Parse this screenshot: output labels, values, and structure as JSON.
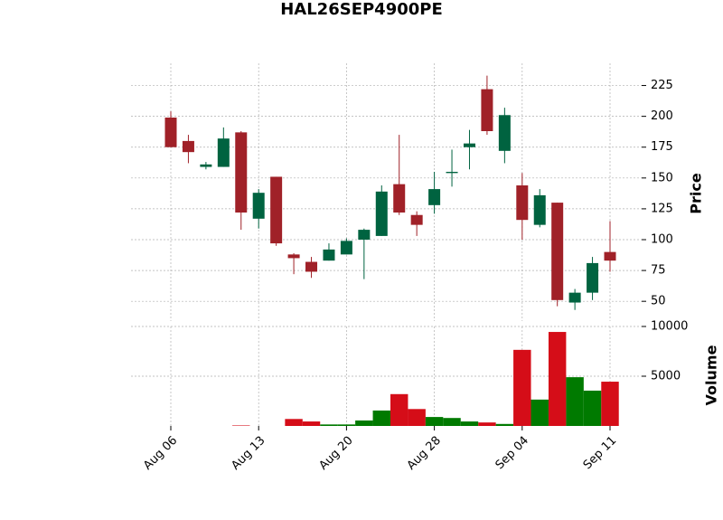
{
  "chart_data": {
    "type": "candlestick",
    "title": "HAL26SEP4900PE",
    "categories": [
      "Aug 06",
      null,
      null,
      null,
      null,
      "Aug 13",
      null,
      null,
      null,
      null,
      "Aug 20",
      null,
      null,
      null,
      null,
      "Aug 28",
      null,
      null,
      null,
      null,
      "Sep 04",
      null,
      null,
      null,
      null,
      "Sep 11"
    ],
    "open": [
      199,
      180,
      159,
      159,
      187,
      117,
      151,
      88,
      82,
      83,
      88,
      100,
      103,
      145,
      120,
      128,
      154,
      175,
      222,
      172,
      144,
      112,
      130,
      49,
      57,
      90
    ],
    "high": [
      204,
      185,
      163,
      191,
      188,
      141,
      151,
      89,
      86,
      97,
      101,
      109,
      144,
      185,
      123,
      155,
      173,
      189,
      233,
      207,
      154,
      141,
      130,
      60,
      86,
      115
    ],
    "low": [
      175,
      162,
      157,
      159,
      108,
      109,
      95,
      72,
      69,
      83,
      88,
      68,
      103,
      120,
      103,
      121,
      143,
      157,
      185,
      162,
      100,
      110,
      46,
      43,
      51,
      74
    ],
    "close": [
      175,
      171,
      161,
      182,
      122,
      138,
      97,
      85,
      74,
      92,
      99,
      108,
      139,
      122,
      112,
      141,
      155,
      178,
      188,
      201,
      116,
      136,
      51,
      57,
      81,
      83
    ],
    "volume": [
      0,
      0,
      0,
      0,
      50,
      0,
      0,
      700,
      450,
      150,
      150,
      550,
      1550,
      3200,
      1700,
      900,
      800,
      450,
      350,
      200,
      7650,
      2650,
      9450,
      4900,
      3550,
      4450
    ],
    "ylabel": "Price",
    "volume_label": "Volume",
    "ylim": [
      34,
      243
    ],
    "yticks": [
      50,
      75,
      100,
      125,
      150,
      175,
      200,
      225
    ],
    "volume_ylim": [
      0,
      10000
    ],
    "volume_yticks": [
      5000,
      10000
    ],
    "up_color": "#006340",
    "down_color": "#a02128",
    "volume_up_color": "#007a00",
    "volume_down_color": "#d50d18",
    "grid": true
  }
}
